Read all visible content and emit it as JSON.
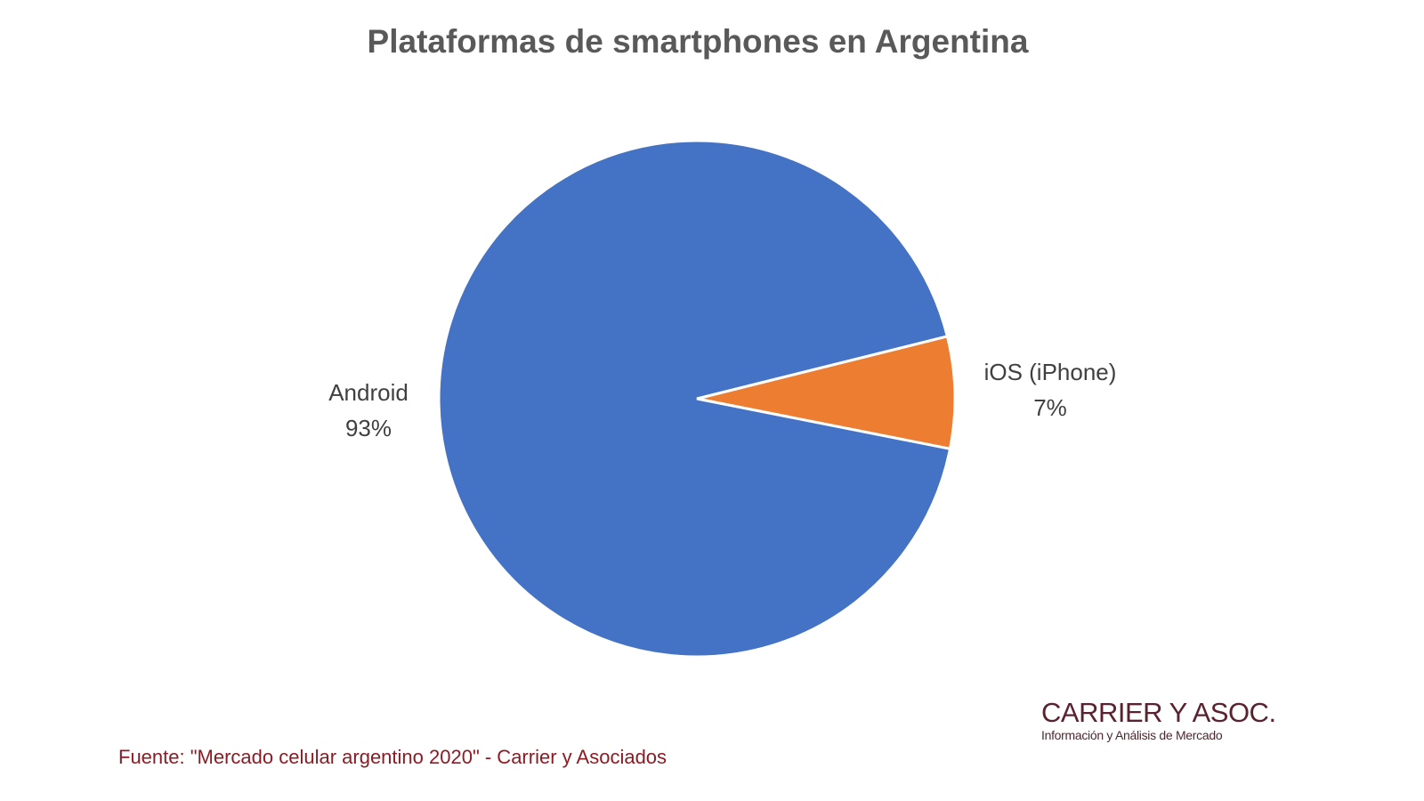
{
  "chart_data": {
    "type": "pie",
    "title": "Plataformas de smartphones en Argentina",
    "slices": [
      {
        "label": "iOS (iPhone)",
        "value": 7,
        "value_label": "7%",
        "color": "#ED7D31"
      },
      {
        "label": "Android",
        "value": 93,
        "value_label": "93%",
        "color": "#4472C4"
      }
    ],
    "legend": "none"
  },
  "logo": {
    "name": "CARRIER Y ASOC.",
    "tagline": "Información y Análisis de Mercado"
  },
  "source": "Fuente: \"Mercado celular argentino 2020\" - Carrier y Asociados"
}
